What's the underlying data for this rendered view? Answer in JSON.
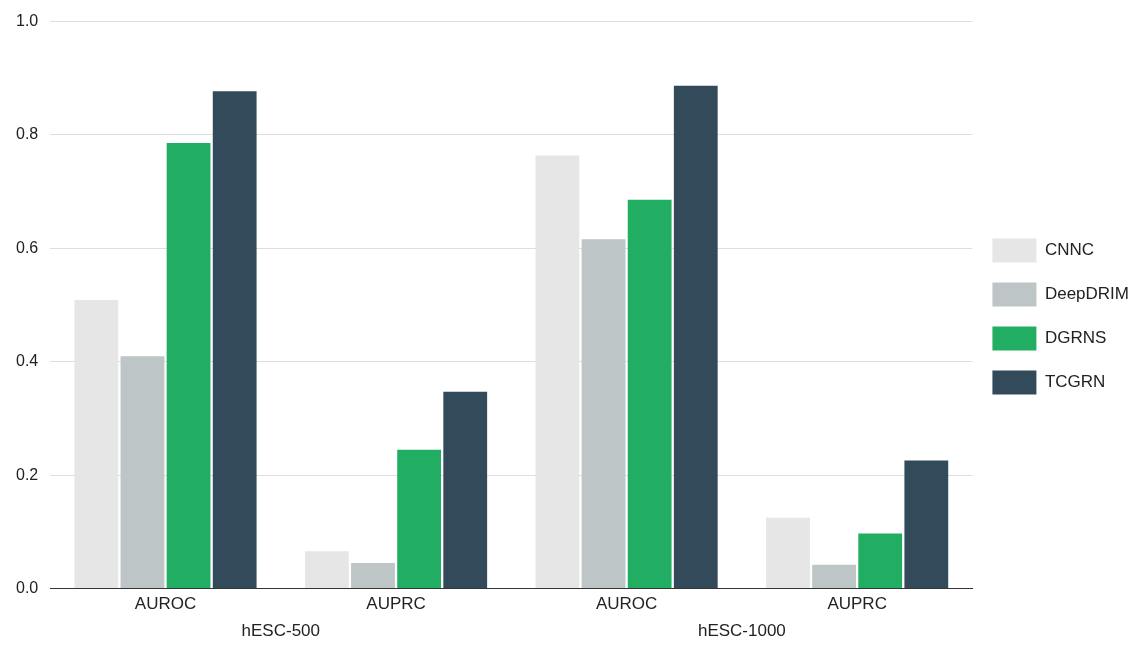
{
  "chart_data": {
    "type": "bar",
    "categories": [
      "AUROC",
      "AUPRC",
      "AUROC",
      "AUPRC"
    ],
    "series": [
      {
        "name": "CNNC",
        "color": "#e6e6e6",
        "values": [
          0.509,
          0.066,
          0.764,
          0.125
        ]
      },
      {
        "name": "DeepDRIM",
        "color": "#bdc5c6",
        "values": [
          0.41,
          0.045,
          0.616,
          0.042
        ]
      },
      {
        "name": "DGRNS",
        "color": "#22ae62",
        "values": [
          0.786,
          0.245,
          0.686,
          0.097
        ]
      },
      {
        "name": "TCGRN",
        "color": "#324a5a",
        "values": [
          0.877,
          0.347,
          0.887,
          0.226
        ]
      }
    ],
    "ylim": [
      0,
      1
    ],
    "yticks": [
      {
        "value": 0,
        "label": "0.0"
      },
      0.2,
      0.4,
      0.6,
      0.8,
      {
        "value": 1,
        "label": "1.0"
      }
    ],
    "annotations": [
      "hESC-500",
      "hESC-1000"
    ],
    "grid": "y",
    "legend": "right"
  }
}
